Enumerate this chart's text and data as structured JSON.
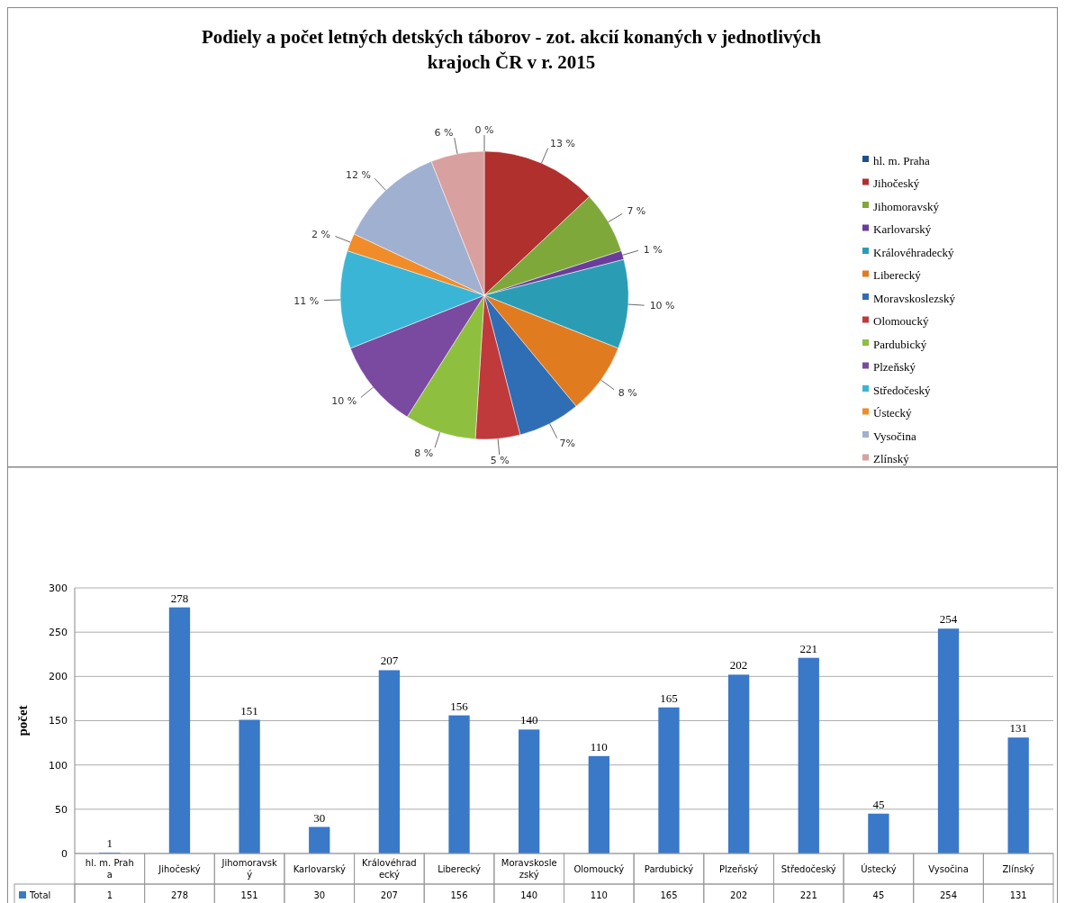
{
  "chart_data": [
    {
      "type": "pie",
      "title": "Podiely a počet letných detských táborov - zot. akcií konaných v jednotlivých krajoch ČR v r. 2015",
      "categories": [
        "hl. m. Praha",
        "Jihočeský",
        "Jihomoravský",
        "Karlovarský",
        "Královéhradecký",
        "Liberecký",
        "Moravskoslezský",
        "Olomoucký",
        "Pardubický",
        "Plzeňský",
        "Středočeský",
        "Ústecký",
        "Vysočina",
        "Zlínský"
      ],
      "values": [
        0,
        13,
        7,
        1,
        10,
        8,
        7,
        5,
        8,
        10,
        11,
        2,
        12,
        6
      ],
      "colors": [
        "#1f4e8c",
        "#b0302e",
        "#7fa83a",
        "#6a3d9a",
        "#2a9db5",
        "#e07b20",
        "#2f6db5",
        "#c0393b",
        "#8fbf3f",
        "#7a4aa0",
        "#3ab5d5",
        "#f08c2a",
        "#a0b0d0",
        "#d9a0a0"
      ],
      "value_labels": [
        "0 %",
        "13 %",
        "7 %",
        "1 %",
        "10 %",
        "8 %",
        "7%",
        "5 %",
        "8 %",
        "10 %",
        "11 %",
        "2 %",
        "12 %",
        "6 %"
      ],
      "legend": "right"
    },
    {
      "type": "bar",
      "ylabel": "počet",
      "categories": [
        "hl. m. Praha",
        "Jihočeský",
        "Jihomoravský",
        "Karlovarský",
        "Královéhradecký",
        "Liberecký",
        "Moravskoslezský",
        "Olomoucký",
        "Pardubický",
        "Plzeňský",
        "Středočeský",
        "Ústecký",
        "Vysočina",
        "Zlínský"
      ],
      "series": [
        {
          "name": "Total",
          "color": "#3a78c8",
          "values": [
            1,
            278,
            151,
            30,
            207,
            156,
            140,
            110,
            165,
            202,
            221,
            45,
            254,
            131
          ]
        }
      ],
      "value_labels": [
        "1",
        "278",
        "151",
        "30",
        "207",
        "156",
        "140",
        "110",
        "165",
        "202",
        "221",
        "45",
        "254",
        "131"
      ],
      "ylim": [
        0,
        300
      ],
      "yticks": [
        0,
        50,
        100,
        150,
        200,
        250,
        300
      ],
      "grid": "y",
      "data_labels": true,
      "legend": "bottom left"
    }
  ]
}
